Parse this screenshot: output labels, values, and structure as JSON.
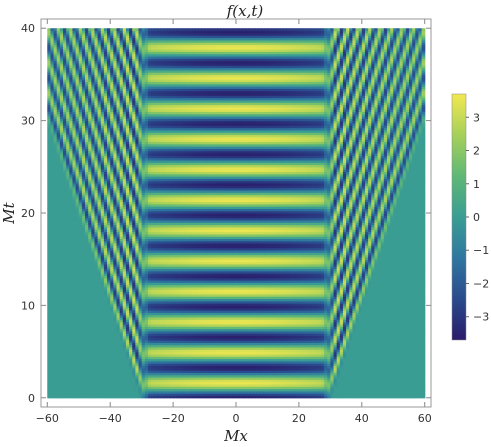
{
  "chart_data": {
    "type": "heatmap",
    "title": "f(x,t)",
    "xlabel": "Mx",
    "ylabel": "Mt",
    "xlim": [
      -62,
      62
    ],
    "ylim": [
      -1,
      41
    ],
    "data_extent": {
      "x": [
        -60,
        60
      ],
      "t": [
        0,
        40
      ]
    },
    "x_ticks": [
      -60,
      -40,
      -20,
      0,
      20,
      40,
      60
    ],
    "y_ticks": [
      0,
      10,
      20,
      30,
      40
    ],
    "x_tick_labels": [
      "−60",
      "−40",
      "−20",
      "0",
      "20",
      "40",
      "60"
    ],
    "y_tick_labels": [
      "0",
      "10",
      "20",
      "30",
      "40"
    ],
    "colorbar": {
      "range": [
        -3.7,
        3.7
      ],
      "ticks": [
        -3,
        -2,
        -1,
        0,
        1,
        2,
        3
      ],
      "tick_labels": [
        "−3",
        "−2",
        "−1",
        "0",
        "1",
        "2",
        "3"
      ],
      "colormap": [
        "#2a1c6a",
        "#2a4a8d",
        "#2f77a0",
        "#3a9d93",
        "#5fb876",
        "#a6d05a",
        "#f2e850"
      ]
    },
    "field": {
      "description_free": true,
      "core_half_width": 30,
      "amplitude": 3.6,
      "oscillation_period": 3.3,
      "light_cone_speed": 1.0,
      "background_value": 0
    },
    "grid": false
  }
}
